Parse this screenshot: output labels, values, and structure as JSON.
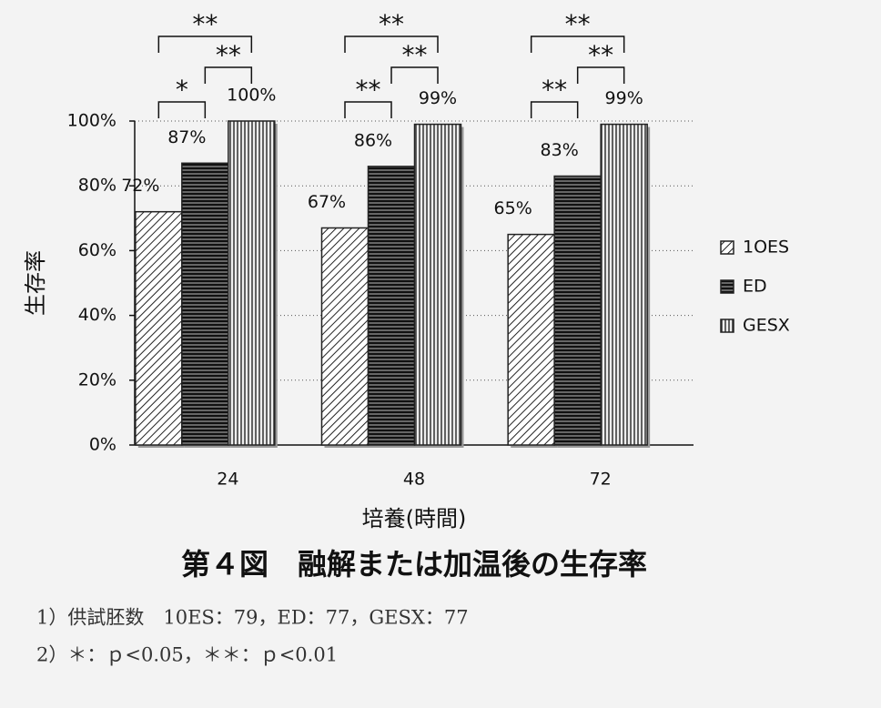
{
  "chart_data": {
    "type": "bar",
    "categories": [
      "24",
      "48",
      "72"
    ],
    "series": [
      {
        "name": "1OES",
        "color": "#222",
        "hatch": "diagonal",
        "values": [
          72,
          67,
          65
        ],
        "value_labels": [
          "72%",
          "67%",
          "65%"
        ]
      },
      {
        "name": "ED",
        "color": "#222",
        "hatch": "horizontal",
        "values": [
          87,
          86,
          83
        ],
        "value_labels": [
          "87%",
          "86%",
          "83%"
        ]
      },
      {
        "name": "GESX",
        "color": "#222",
        "hatch": "vertical",
        "values": [
          100,
          99,
          99
        ],
        "value_labels": [
          "100%",
          "99%",
          "99%"
        ]
      }
    ],
    "ylim": [
      0,
      100
    ],
    "yticks": [
      {
        "value": 0,
        "label": "0%"
      },
      {
        "value": 20,
        "label": "20%"
      },
      {
        "value": 40,
        "label": "40%"
      },
      {
        "value": 60,
        "label": "60%"
      },
      {
        "value": 80,
        "label": "80%"
      },
      {
        "value": 100,
        "label": "100%"
      }
    ],
    "grid": true,
    "legend": "right",
    "y_label": "生存率",
    "x_label": "培養(時間)",
    "significance": [
      [
        "**",
        "**",
        "*"
      ],
      [
        "**",
        "**",
        "**"
      ],
      [
        "**",
        "**",
        "**"
      ]
    ],
    "title": "第４図　融解または加温後の生存率",
    "notes": [
      "1）供試胚数　10ES：79，ED：77，GESX：77",
      "2）＊：ｐ<0.05，＊＊：ｐ<0.01"
    ]
  }
}
